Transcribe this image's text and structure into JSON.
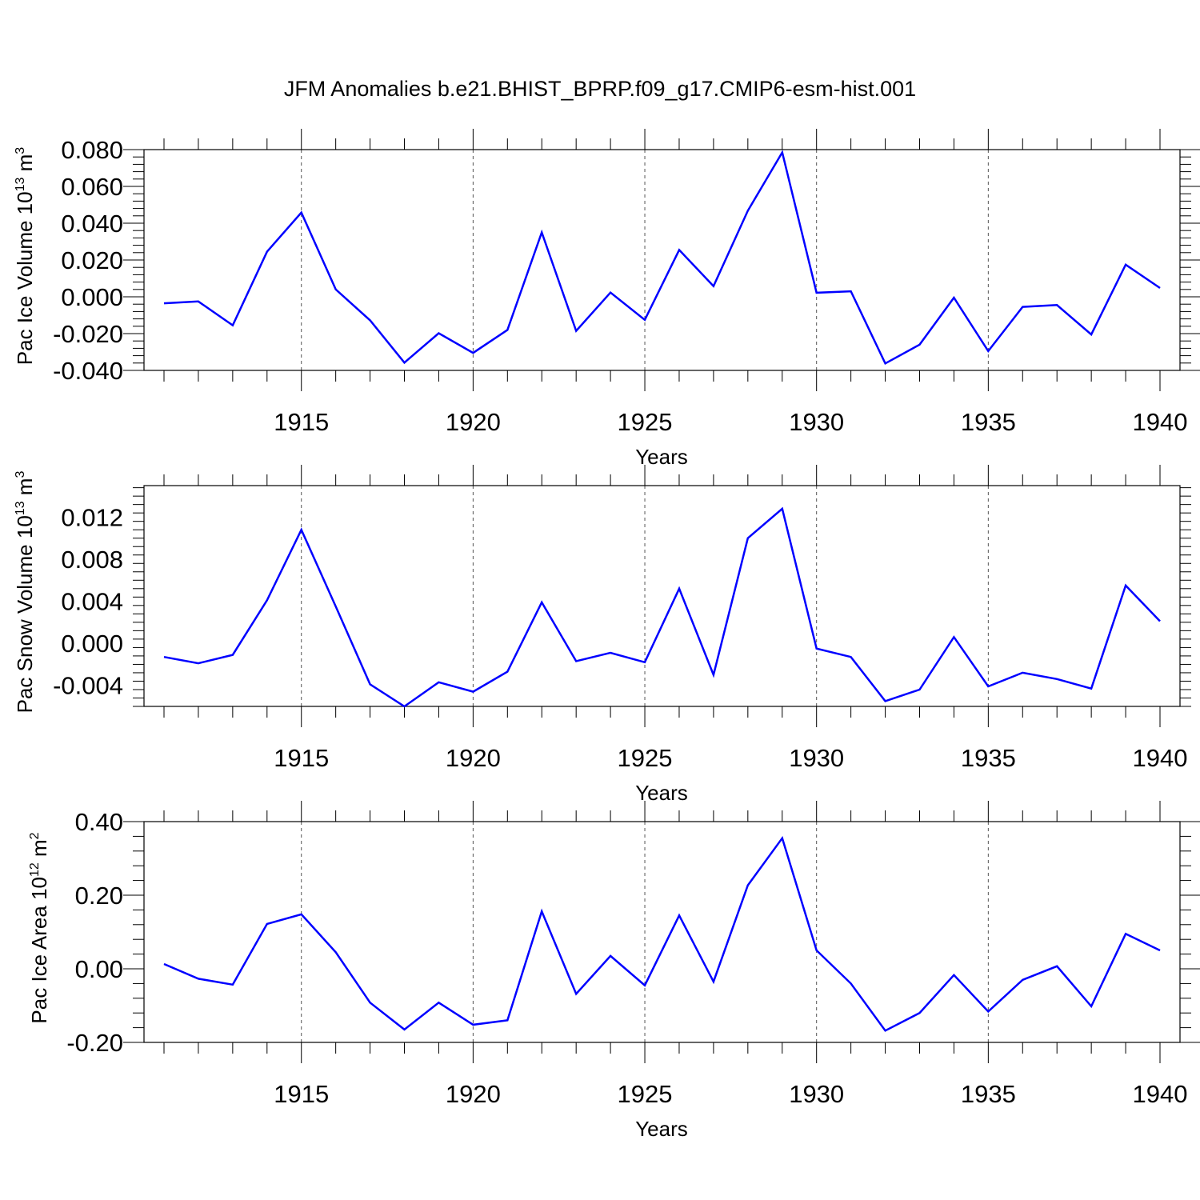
{
  "title": "JFM Anomalies b.e21.BHIST_BPRP.f09_g17.CMIP6-esm-hist.001",
  "chart_data": [
    {
      "type": "line",
      "title": "",
      "xlabel": "Years",
      "ylabel": "Pac Ice Volume 10",
      "ylabel_exp": "13",
      "ylabel_unit": " m",
      "ylabel_unit_exp": "3",
      "xlim": [
        1911,
        1940
      ],
      "ylim": [
        -0.04,
        0.08
      ],
      "yticks": [
        -0.04,
        -0.02,
        0.0,
        0.02,
        0.04,
        0.06,
        0.08
      ],
      "ytick_labels": [
        "-0.040",
        "-0.020",
        "0.000",
        "0.020",
        "0.040",
        "0.060",
        "0.080"
      ],
      "xticks": [
        1915,
        1920,
        1925,
        1930,
        1935,
        1940
      ],
      "xtick_labels": [
        "1915",
        "1920",
        "1925",
        "1930",
        "1935",
        "1940"
      ],
      "grid": "dashed vertical at major x ticks",
      "color": "#0000ff",
      "x": [
        1911,
        1912,
        1913,
        1914,
        1915,
        1916,
        1917,
        1918,
        1919,
        1920,
        1921,
        1922,
        1923,
        1924,
        1925,
        1926,
        1927,
        1928,
        1929,
        1930,
        1931,
        1932,
        1933,
        1934,
        1935,
        1936,
        1937,
        1938,
        1939,
        1940
      ],
      "series": [
        {
          "name": "Pac Ice Volume",
          "values": [
            -0.0035,
            -0.0025,
            -0.0155,
            0.0245,
            0.0458,
            0.004,
            -0.0128,
            -0.0358,
            -0.0198,
            -0.0305,
            -0.018,
            0.035,
            -0.0185,
            0.0023,
            -0.0125,
            0.0255,
            0.0058,
            0.0468,
            0.0785,
            0.0022,
            0.003,
            -0.0362,
            -0.026,
            -0.0005,
            -0.0295,
            -0.0055,
            -0.0045,
            -0.0205,
            0.0175,
            0.0048
          ]
        }
      ]
    },
    {
      "type": "line",
      "title": "",
      "xlabel": "Years",
      "ylabel": "Pac Snow Volume 10",
      "ylabel_exp": "13",
      "ylabel_unit": " m",
      "ylabel_unit_exp": "3",
      "xlim": [
        1911,
        1940
      ],
      "ylim": [
        -0.006,
        0.015
      ],
      "yticks": [
        -0.004,
        0.0,
        0.004,
        0.008,
        0.012
      ],
      "ytick_labels": [
        "-0.004",
        "0.000",
        "0.004",
        "0.008",
        "0.012"
      ],
      "xticks": [
        1915,
        1920,
        1925,
        1930,
        1935,
        1940
      ],
      "xtick_labels": [
        "1915",
        "1920",
        "1925",
        "1930",
        "1935",
        "1940"
      ],
      "grid": "dashed vertical at major x ticks",
      "color": "#0000ff",
      "x": [
        1911,
        1912,
        1913,
        1914,
        1915,
        1916,
        1917,
        1918,
        1919,
        1920,
        1921,
        1922,
        1923,
        1924,
        1925,
        1926,
        1927,
        1928,
        1929,
        1930,
        1931,
        1932,
        1933,
        1934,
        1935,
        1936,
        1937,
        1938,
        1939,
        1940
      ],
      "series": [
        {
          "name": "Pac Snow Volume",
          "values": [
            -0.0013,
            -0.0019,
            -0.0011,
            0.0041,
            0.0108,
            0.0035,
            -0.0039,
            -0.006,
            -0.0037,
            -0.0046,
            -0.0027,
            0.0039,
            -0.0017,
            -0.0009,
            -0.0018,
            0.0052,
            -0.003,
            0.01,
            0.0128,
            -0.0005,
            -0.0013,
            -0.0055,
            -0.0044,
            0.0006,
            -0.0041,
            -0.0028,
            -0.0034,
            -0.0043,
            0.0055,
            0.0021
          ]
        }
      ]
    },
    {
      "type": "line",
      "title": "",
      "xlabel": "Years",
      "ylabel": "Pac Ice Area 10",
      "ylabel_exp": "12",
      "ylabel_unit": " m",
      "ylabel_unit_exp": "2",
      "xlim": [
        1911,
        1940
      ],
      "ylim": [
        -0.2,
        0.4
      ],
      "yticks": [
        -0.2,
        0.0,
        0.2,
        0.4
      ],
      "ytick_labels": [
        "-0.20",
        "0.00",
        "0.20",
        "0.40"
      ],
      "xticks": [
        1915,
        1920,
        1925,
        1930,
        1935,
        1940
      ],
      "xtick_labels": [
        "1915",
        "1920",
        "1925",
        "1930",
        "1935",
        "1940"
      ],
      "grid": "dashed vertical at major x ticks",
      "color": "#0000ff",
      "x": [
        1911,
        1912,
        1913,
        1914,
        1915,
        1916,
        1917,
        1918,
        1919,
        1920,
        1921,
        1922,
        1923,
        1924,
        1925,
        1926,
        1927,
        1928,
        1929,
        1930,
        1931,
        1932,
        1933,
        1934,
        1935,
        1936,
        1937,
        1938,
        1939,
        1940
      ],
      "series": [
        {
          "name": "Pac Ice Area",
          "values": [
            0.013,
            -0.027,
            -0.043,
            0.122,
            0.148,
            0.045,
            -0.092,
            -0.165,
            -0.092,
            -0.152,
            -0.14,
            0.156,
            -0.068,
            0.035,
            -0.045,
            0.145,
            -0.035,
            0.227,
            0.355,
            0.05,
            -0.04,
            -0.168,
            -0.12,
            -0.017,
            -0.116,
            -0.03,
            0.007,
            -0.102,
            0.095,
            0.05
          ]
        }
      ]
    }
  ]
}
